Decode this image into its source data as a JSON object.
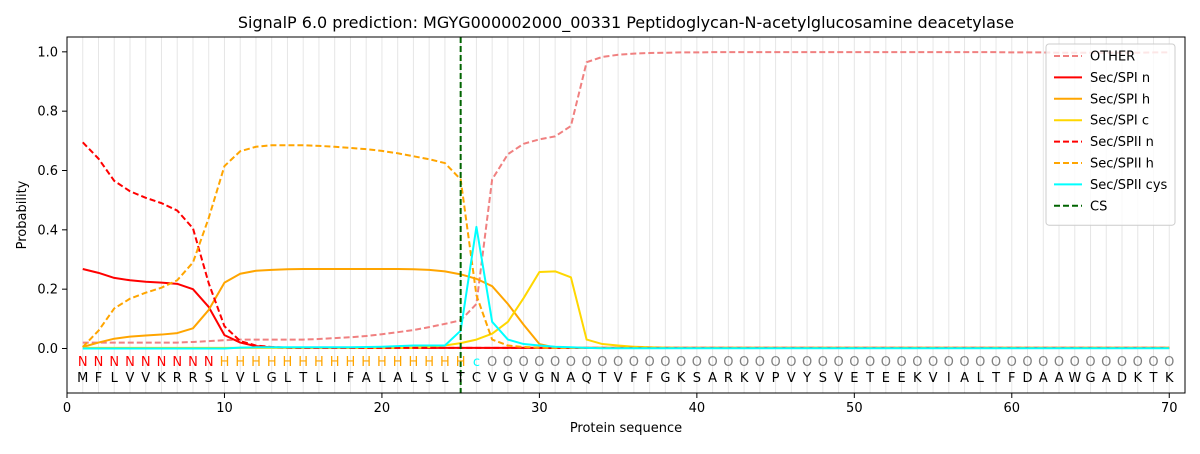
{
  "chart_data": {
    "type": "line",
    "title": "SignalP 6.0 prediction: MGYG000002000_00331 Peptidoglycan-N-acetylglucosamine deacetylase",
    "xlabel": "Protein sequence",
    "ylabel": "Probability",
    "xlim": [
      0,
      71
    ],
    "ylim": [
      -0.15,
      1.05
    ],
    "x_ticks": [
      0,
      10,
      20,
      30,
      40,
      50,
      60,
      70
    ],
    "y_ticks": [
      0.0,
      0.2,
      0.4,
      0.6,
      0.8,
      1.0
    ],
    "x_tick_labels": [
      "0",
      "10",
      "20",
      "30",
      "40",
      "50",
      "60",
      "70"
    ],
    "y_tick_labels": [
      "0.0",
      "0.2",
      "0.4",
      "0.6",
      "0.8",
      "1.0"
    ],
    "grid": "vertical lines at every residue position",
    "legend_position": "top-right",
    "sequence": [
      "M",
      "F",
      "L",
      "V",
      "V",
      "K",
      "R",
      "R",
      "S",
      "L",
      "V",
      "L",
      "G",
      "L",
      "T",
      "L",
      "I",
      "F",
      "A",
      "L",
      "A",
      "L",
      "S",
      "L",
      "T",
      "C",
      "V",
      "G",
      "V",
      "G",
      "N",
      "A",
      "Q",
      "T",
      "V",
      "F",
      "F",
      "G",
      "K",
      "S",
      "A",
      "R",
      "K",
      "V",
      "P",
      "V",
      "Y",
      "S",
      "V",
      "E",
      "T",
      "E",
      "E",
      "K",
      "V",
      "I",
      "A",
      "L",
      "T",
      "F",
      "D",
      "A",
      "A",
      "W",
      "G",
      "A",
      "D",
      "K",
      "T",
      "K"
    ],
    "region_labels": [
      "N",
      "N",
      "N",
      "N",
      "N",
      "N",
      "N",
      "N",
      "N",
      "H",
      "H",
      "H",
      "H",
      "H",
      "H",
      "H",
      "H",
      "H",
      "H",
      "H",
      "H",
      "H",
      "H",
      "H",
      "H",
      "c",
      "O",
      "O",
      "O",
      "O",
      "O",
      "O",
      "O",
      "O",
      "O",
      "O",
      "O",
      "O",
      "O",
      "O",
      "O",
      "O",
      "O",
      "O",
      "O",
      "O",
      "O",
      "O",
      "O",
      "O",
      "O",
      "O",
      "O",
      "O",
      "O",
      "O",
      "O",
      "O",
      "O",
      "O",
      "O",
      "O",
      "O",
      "O",
      "O",
      "O",
      "O",
      "O",
      "O",
      "O"
    ],
    "region_colors": {
      "N": "#ff0000",
      "H": "#ffa500",
      "c": "#00ffff",
      "O": "#808080"
    },
    "cleavage_site": 25,
    "series": [
      {
        "name": "OTHER",
        "color": "#f08080",
        "dash": "dashed",
        "values": [
          0.02,
          0.02,
          0.02,
          0.02,
          0.02,
          0.02,
          0.02,
          0.022,
          0.025,
          0.028,
          0.03,
          0.03,
          0.03,
          0.03,
          0.03,
          0.032,
          0.035,
          0.038,
          0.042,
          0.048,
          0.055,
          0.062,
          0.072,
          0.083,
          0.095,
          0.15,
          0.57,
          0.655,
          0.69,
          0.705,
          0.715,
          0.75,
          0.965,
          0.983,
          0.99,
          0.994,
          0.996,
          0.997,
          0.998,
          0.998,
          0.999,
          0.999,
          0.999,
          0.999,
          0.999,
          0.999,
          0.999,
          0.999,
          0.999,
          0.999,
          0.999,
          0.999,
          0.999,
          0.999,
          0.999,
          0.999,
          0.999,
          0.999,
          0.999,
          0.998,
          0.998,
          0.998,
          0.997,
          0.997,
          0.997,
          0.997,
          0.997,
          0.997,
          0.998,
          0.998
        ]
      },
      {
        "name": "Sec/SPI n",
        "color": "#ff0000",
        "dash": "solid",
        "values": [
          0.268,
          0.255,
          0.238,
          0.23,
          0.225,
          0.222,
          0.218,
          0.2,
          0.14,
          0.045,
          0.02,
          0.008,
          0.004,
          0.003,
          0.002,
          0.002,
          0.002,
          0.002,
          0.002,
          0.002,
          0.002,
          0.002,
          0.002,
          0.002,
          0.002,
          0.002,
          0.002,
          0.002,
          0.002,
          0.002,
          0.002,
          0.002,
          0.002,
          0.002,
          0.002,
          0.002,
          0.002,
          0.002,
          0.002,
          0.002,
          0.002,
          0.002,
          0.002,
          0.002,
          0.002,
          0.002,
          0.002,
          0.002,
          0.002,
          0.002,
          0.002,
          0.002,
          0.002,
          0.002,
          0.002,
          0.002,
          0.002,
          0.002,
          0.002,
          0.002,
          0.002,
          0.002,
          0.002,
          0.002,
          0.002,
          0.002,
          0.002,
          0.002,
          0.002,
          0.002
        ]
      },
      {
        "name": "Sec/SPI h",
        "color": "#ffa500",
        "dash": "solid",
        "values": [
          0.005,
          0.02,
          0.033,
          0.04,
          0.044,
          0.047,
          0.052,
          0.068,
          0.13,
          0.222,
          0.252,
          0.262,
          0.265,
          0.267,
          0.268,
          0.268,
          0.268,
          0.268,
          0.268,
          0.268,
          0.268,
          0.267,
          0.265,
          0.26,
          0.25,
          0.235,
          0.21,
          0.15,
          0.08,
          0.015,
          0.003,
          0.002,
          0.002,
          0.002,
          0.002,
          0.002,
          0.002,
          0.002,
          0.002,
          0.002,
          0.002,
          0.002,
          0.002,
          0.002,
          0.002,
          0.002,
          0.002,
          0.002,
          0.002,
          0.002,
          0.002,
          0.002,
          0.002,
          0.002,
          0.002,
          0.002,
          0.002,
          0.002,
          0.002,
          0.002,
          0.002,
          0.002,
          0.002,
          0.002,
          0.002,
          0.002,
          0.002,
          0.002,
          0.002,
          0.002
        ]
      },
      {
        "name": "Sec/SPI c",
        "color": "#ffd700",
        "dash": "solid",
        "values": [
          0.002,
          0.002,
          0.002,
          0.002,
          0.002,
          0.002,
          0.002,
          0.002,
          0.002,
          0.002,
          0.002,
          0.002,
          0.002,
          0.002,
          0.002,
          0.002,
          0.002,
          0.002,
          0.002,
          0.002,
          0.002,
          0.002,
          0.005,
          0.01,
          0.018,
          0.03,
          0.05,
          0.09,
          0.17,
          0.258,
          0.26,
          0.24,
          0.03,
          0.015,
          0.01,
          0.006,
          0.004,
          0.003,
          0.002,
          0.002,
          0.002,
          0.002,
          0.002,
          0.002,
          0.002,
          0.002,
          0.002,
          0.002,
          0.002,
          0.002,
          0.002,
          0.002,
          0.002,
          0.002,
          0.002,
          0.002,
          0.002,
          0.002,
          0.002,
          0.002,
          0.002,
          0.002,
          0.002,
          0.002,
          0.002,
          0.002,
          0.002,
          0.002,
          0.002,
          0.002
        ]
      },
      {
        "name": "Sec/SPII n",
        "color": "#ff0000",
        "dash": "dashed",
        "values": [
          0.695,
          0.64,
          0.565,
          0.53,
          0.508,
          0.49,
          0.465,
          0.405,
          0.22,
          0.075,
          0.025,
          0.01,
          0.005,
          0.003,
          0.002,
          0.002,
          0.002,
          0.002,
          0.002,
          0.002,
          0.002,
          0.002,
          0.002,
          0.002,
          0.002,
          0.002,
          0.002,
          0.002,
          0.002,
          0.002,
          0.002,
          0.002,
          0.002,
          0.002,
          0.002,
          0.002,
          0.002,
          0.002,
          0.002,
          0.002,
          0.002,
          0.002,
          0.002,
          0.002,
          0.002,
          0.002,
          0.002,
          0.002,
          0.002,
          0.002,
          0.002,
          0.002,
          0.002,
          0.002,
          0.002,
          0.002,
          0.002,
          0.002,
          0.002,
          0.002,
          0.002,
          0.002,
          0.002,
          0.002,
          0.002,
          0.002,
          0.002,
          0.002,
          0.002,
          0.002
        ]
      },
      {
        "name": "Sec/SPII h",
        "color": "#ffa500",
        "dash": "dashed",
        "values": [
          0.005,
          0.06,
          0.135,
          0.168,
          0.188,
          0.205,
          0.23,
          0.29,
          0.44,
          0.615,
          0.665,
          0.68,
          0.685,
          0.685,
          0.685,
          0.683,
          0.68,
          0.676,
          0.672,
          0.666,
          0.658,
          0.648,
          0.638,
          0.625,
          0.57,
          0.18,
          0.03,
          0.01,
          0.005,
          0.003,
          0.002,
          0.002,
          0.002,
          0.002,
          0.002,
          0.002,
          0.002,
          0.002,
          0.002,
          0.002,
          0.002,
          0.002,
          0.002,
          0.002,
          0.002,
          0.002,
          0.002,
          0.002,
          0.002,
          0.002,
          0.002,
          0.002,
          0.002,
          0.002,
          0.002,
          0.002,
          0.002,
          0.002,
          0.002,
          0.002,
          0.002,
          0.002,
          0.002,
          0.002,
          0.002,
          0.002,
          0.002,
          0.002,
          0.002,
          0.002
        ]
      },
      {
        "name": "Sec/SPII cys",
        "color": "#00ffff",
        "dash": "solid",
        "values": [
          0.0,
          0.0,
          0.0,
          0.0,
          0.0,
          0.0,
          0.0,
          0.0,
          0.0,
          0.0,
          0.003,
          0.004,
          0.004,
          0.004,
          0.004,
          0.004,
          0.004,
          0.004,
          0.005,
          0.006,
          0.008,
          0.01,
          0.01,
          0.01,
          0.06,
          0.41,
          0.09,
          0.03,
          0.015,
          0.01,
          0.006,
          0.004,
          0.002,
          0.001,
          0.001,
          0.001,
          0.001,
          0.001,
          0.001,
          0.001,
          0.001,
          0.001,
          0.001,
          0.001,
          0.001,
          0.001,
          0.001,
          0.001,
          0.001,
          0.001,
          0.001,
          0.001,
          0.001,
          0.001,
          0.001,
          0.001,
          0.001,
          0.001,
          0.001,
          0.001,
          0.001,
          0.001,
          0.001,
          0.001,
          0.001,
          0.001,
          0.001,
          0.001,
          0.001,
          0.001
        ]
      },
      {
        "name": "CS",
        "color": "#006400",
        "dash": "dashed",
        "vertical_at": 25
      }
    ]
  }
}
